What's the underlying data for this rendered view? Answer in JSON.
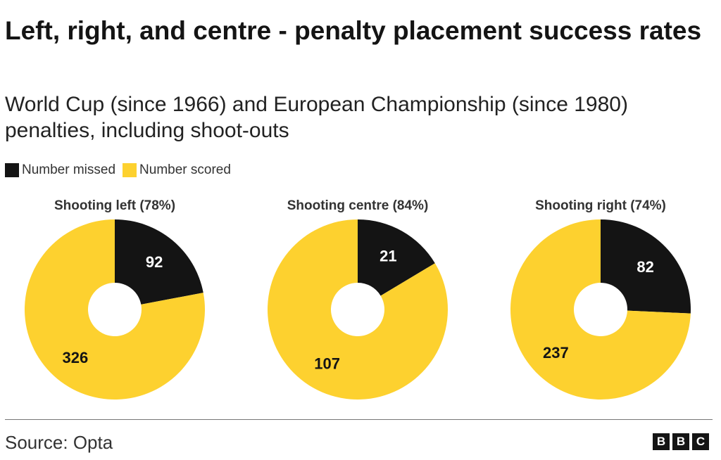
{
  "header": {
    "title": "Left, right, and centre - penalty placement success rates",
    "subtitle": "World Cup (since 1966) and European Championship (since 1980) penalties, including shoot-outs"
  },
  "legend": {
    "items": [
      {
        "label": "Number missed",
        "color": "#141414"
      },
      {
        "label": "Number scored",
        "color": "#FDD12F"
      }
    ]
  },
  "chart_data": [
    {
      "type": "pie",
      "title": "Shooting left (78%)",
      "categories": [
        "Number missed",
        "Number scored"
      ],
      "values": [
        92,
        326
      ],
      "colors": [
        "#141414",
        "#FDD12F"
      ]
    },
    {
      "type": "pie",
      "title": "Shooting centre (84%)",
      "categories": [
        "Number missed",
        "Number scored"
      ],
      "values": [
        21,
        107
      ],
      "colors": [
        "#141414",
        "#FDD12F"
      ]
    },
    {
      "type": "pie",
      "title": "Shooting right (74%)",
      "categories": [
        "Number missed",
        "Number scored"
      ],
      "values": [
        82,
        237
      ],
      "colors": [
        "#141414",
        "#FDD12F"
      ]
    }
  ],
  "footer": {
    "source": "Source: Opta",
    "logo_letters": [
      "B",
      "B",
      "C"
    ]
  }
}
